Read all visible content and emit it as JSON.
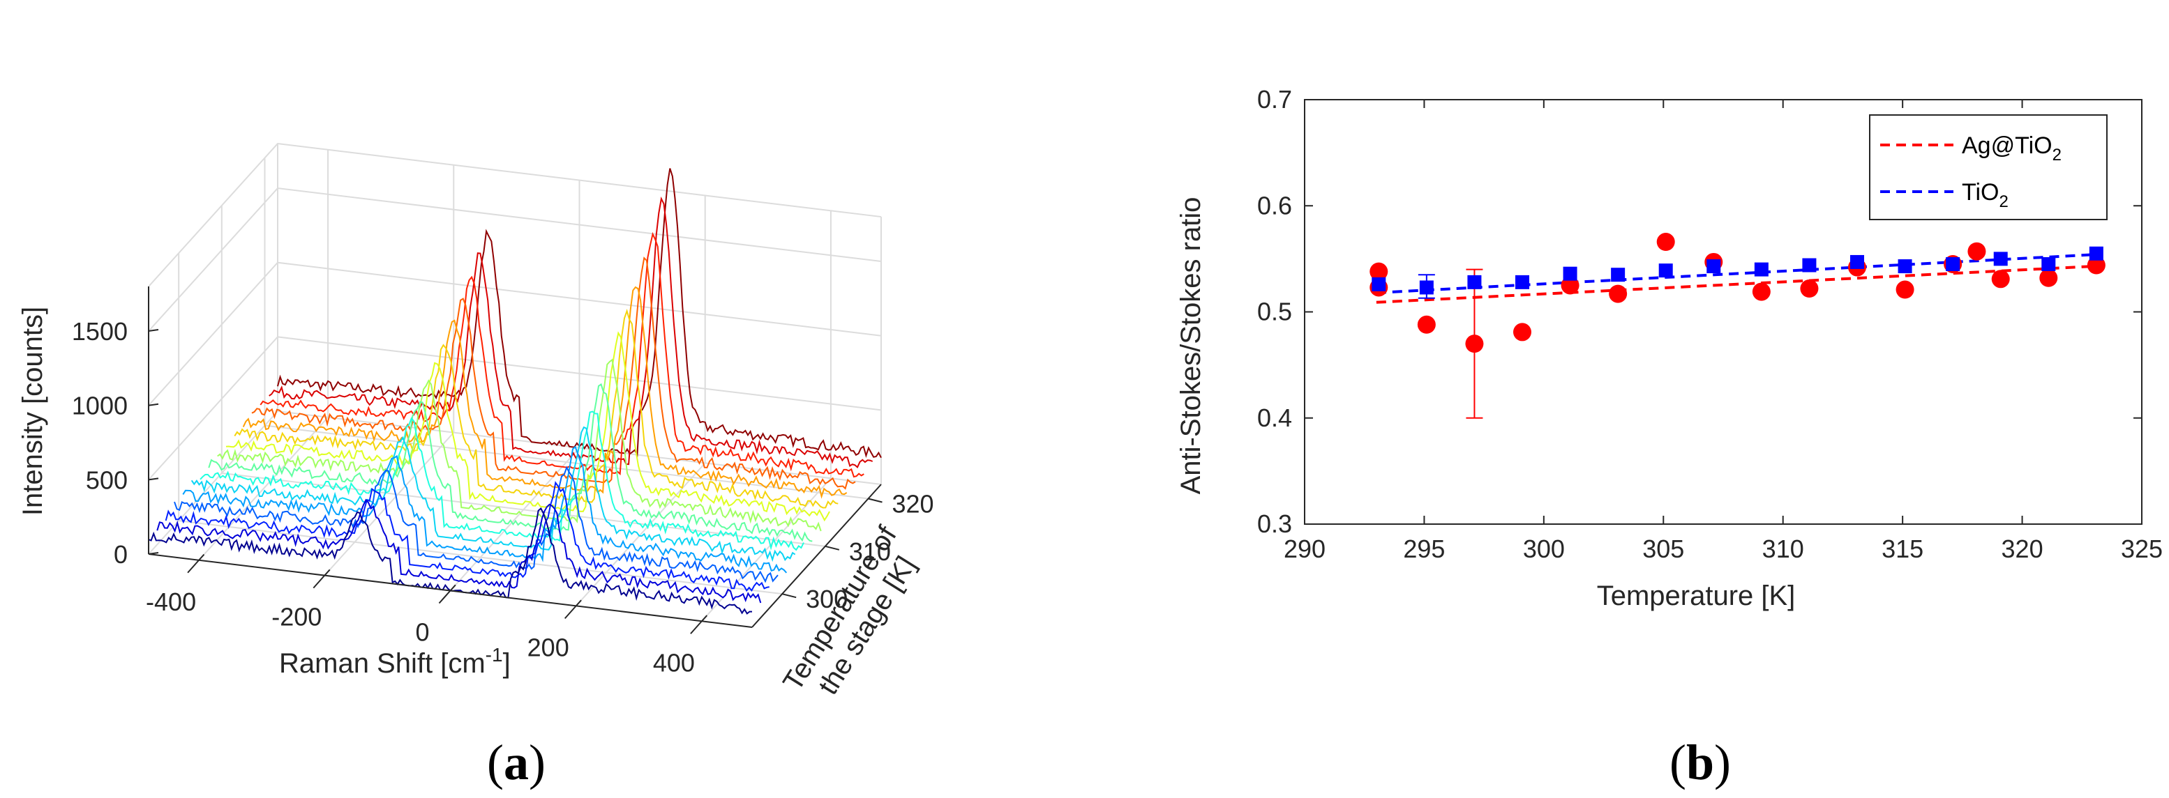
{
  "chart_data": [
    {
      "type": "line",
      "panel_label": {
        "open": "(",
        "letter": "a",
        "close": ")"
      },
      "view": "3d-waterfall",
      "xlabel": "Raman Shift [cm",
      "xlabel_sup": "-1",
      "xlabel_tail": "]",
      "ylabel_lines": [
        "Temperature of",
        "the stage [K]"
      ],
      "zlabel": "Intensity [counts]",
      "x_ticks": [
        "-400",
        "-200",
        "0",
        "200",
        "400"
      ],
      "x_tick_values": [
        -400,
        -200,
        0,
        200,
        400
      ],
      "y_ticks": [
        "300",
        "310",
        "320"
      ],
      "y_tick_values": [
        300,
        310,
        320
      ],
      "z_ticks": [
        "0",
        "500",
        "1000",
        "1500"
      ],
      "z_tick_values": [
        0,
        500,
        1000,
        1500
      ],
      "xlim": [
        -480,
        480
      ],
      "ylim": [
        293,
        323
      ],
      "zlim": [
        0,
        1800
      ],
      "temperatures": [
        293,
        295,
        297,
        299,
        301,
        303,
        305,
        307,
        309,
        311,
        313,
        315,
        317,
        319,
        321,
        323
      ],
      "colormap": [
        "#00008f",
        "#0000ff",
        "#0060ff",
        "#00bfff",
        "#20ffdf",
        "#80ff80",
        "#dfff20",
        "#ffbf00",
        "#ff6000",
        "#ff0000",
        "#8f0000"
      ],
      "peaks": [
        {
          "shift": -145,
          "width": 22,
          "amp_start": 300,
          "amp_end": 1130
        },
        {
          "shift": 145,
          "width": 22,
          "amp_start": 450,
          "amp_end": 1680
        }
      ],
      "baseline_start": 160,
      "baseline_end": 270,
      "center_notch": true
    },
    {
      "type": "scatter",
      "panel_label": {
        "open": "(",
        "letter": "b",
        "close": ")"
      },
      "xlabel": "Temperature [K]",
      "ylabel": "Anti-Stokes/Stokes ratio",
      "xlim": [
        290,
        325
      ],
      "ylim": [
        0.3,
        0.7
      ],
      "x_ticks": [
        "290",
        "295",
        "300",
        "305",
        "310",
        "315",
        "320",
        "325"
      ],
      "x_tick_values": [
        290,
        295,
        300,
        305,
        310,
        315,
        320,
        325
      ],
      "y_ticks": [
        "0.3",
        "0.4",
        "0.5",
        "0.6",
        "0.7"
      ],
      "y_tick_values": [
        0.3,
        0.4,
        0.5,
        0.6,
        0.7
      ],
      "legend_position": "top-right",
      "series": [
        {
          "name": "Ag@TiO",
          "name_sub": "2",
          "color": "#ff0000",
          "marker": "circle",
          "x": [
            293.1,
            293.1,
            295.1,
            297.1,
            299.1,
            301.1,
            303.1,
            305.1,
            307.1,
            309.1,
            311.1,
            313.1,
            315.1,
            317.1,
            318.1,
            319.1,
            321.1,
            323.1
          ],
          "y": [
            0.538,
            0.523,
            0.488,
            0.47,
            0.481,
            0.525,
            0.517,
            0.566,
            0.547,
            0.519,
            0.522,
            0.542,
            0.521,
            0.545,
            0.557,
            0.531,
            0.532,
            0.544
          ],
          "errors": [
            {
              "x": 297.1,
              "low": 0.4,
              "high": 0.54
            }
          ],
          "fit": {
            "x": [
              293,
              323
            ],
            "y": [
              0.509,
              0.543
            ]
          }
        },
        {
          "name": "TiO",
          "name_sub": "2",
          "color": "#0000ff",
          "marker": "square",
          "x": [
            293.1,
            295.1,
            297.1,
            299.1,
            301.1,
            303.1,
            305.1,
            307.1,
            309.1,
            311.1,
            313.1,
            315.1,
            317.1,
            319.1,
            321.1,
            323.1
          ],
          "y": [
            0.526,
            0.523,
            0.528,
            0.528,
            0.536,
            0.535,
            0.539,
            0.543,
            0.54,
            0.544,
            0.547,
            0.543,
            0.545,
            0.55,
            0.545,
            0.555
          ],
          "errors": [
            {
              "x": 295.1,
              "low": 0.513,
              "high": 0.535
            }
          ],
          "fit": {
            "x": [
              293,
              323
            ],
            "y": [
              0.518,
              0.554
            ]
          }
        }
      ]
    }
  ]
}
